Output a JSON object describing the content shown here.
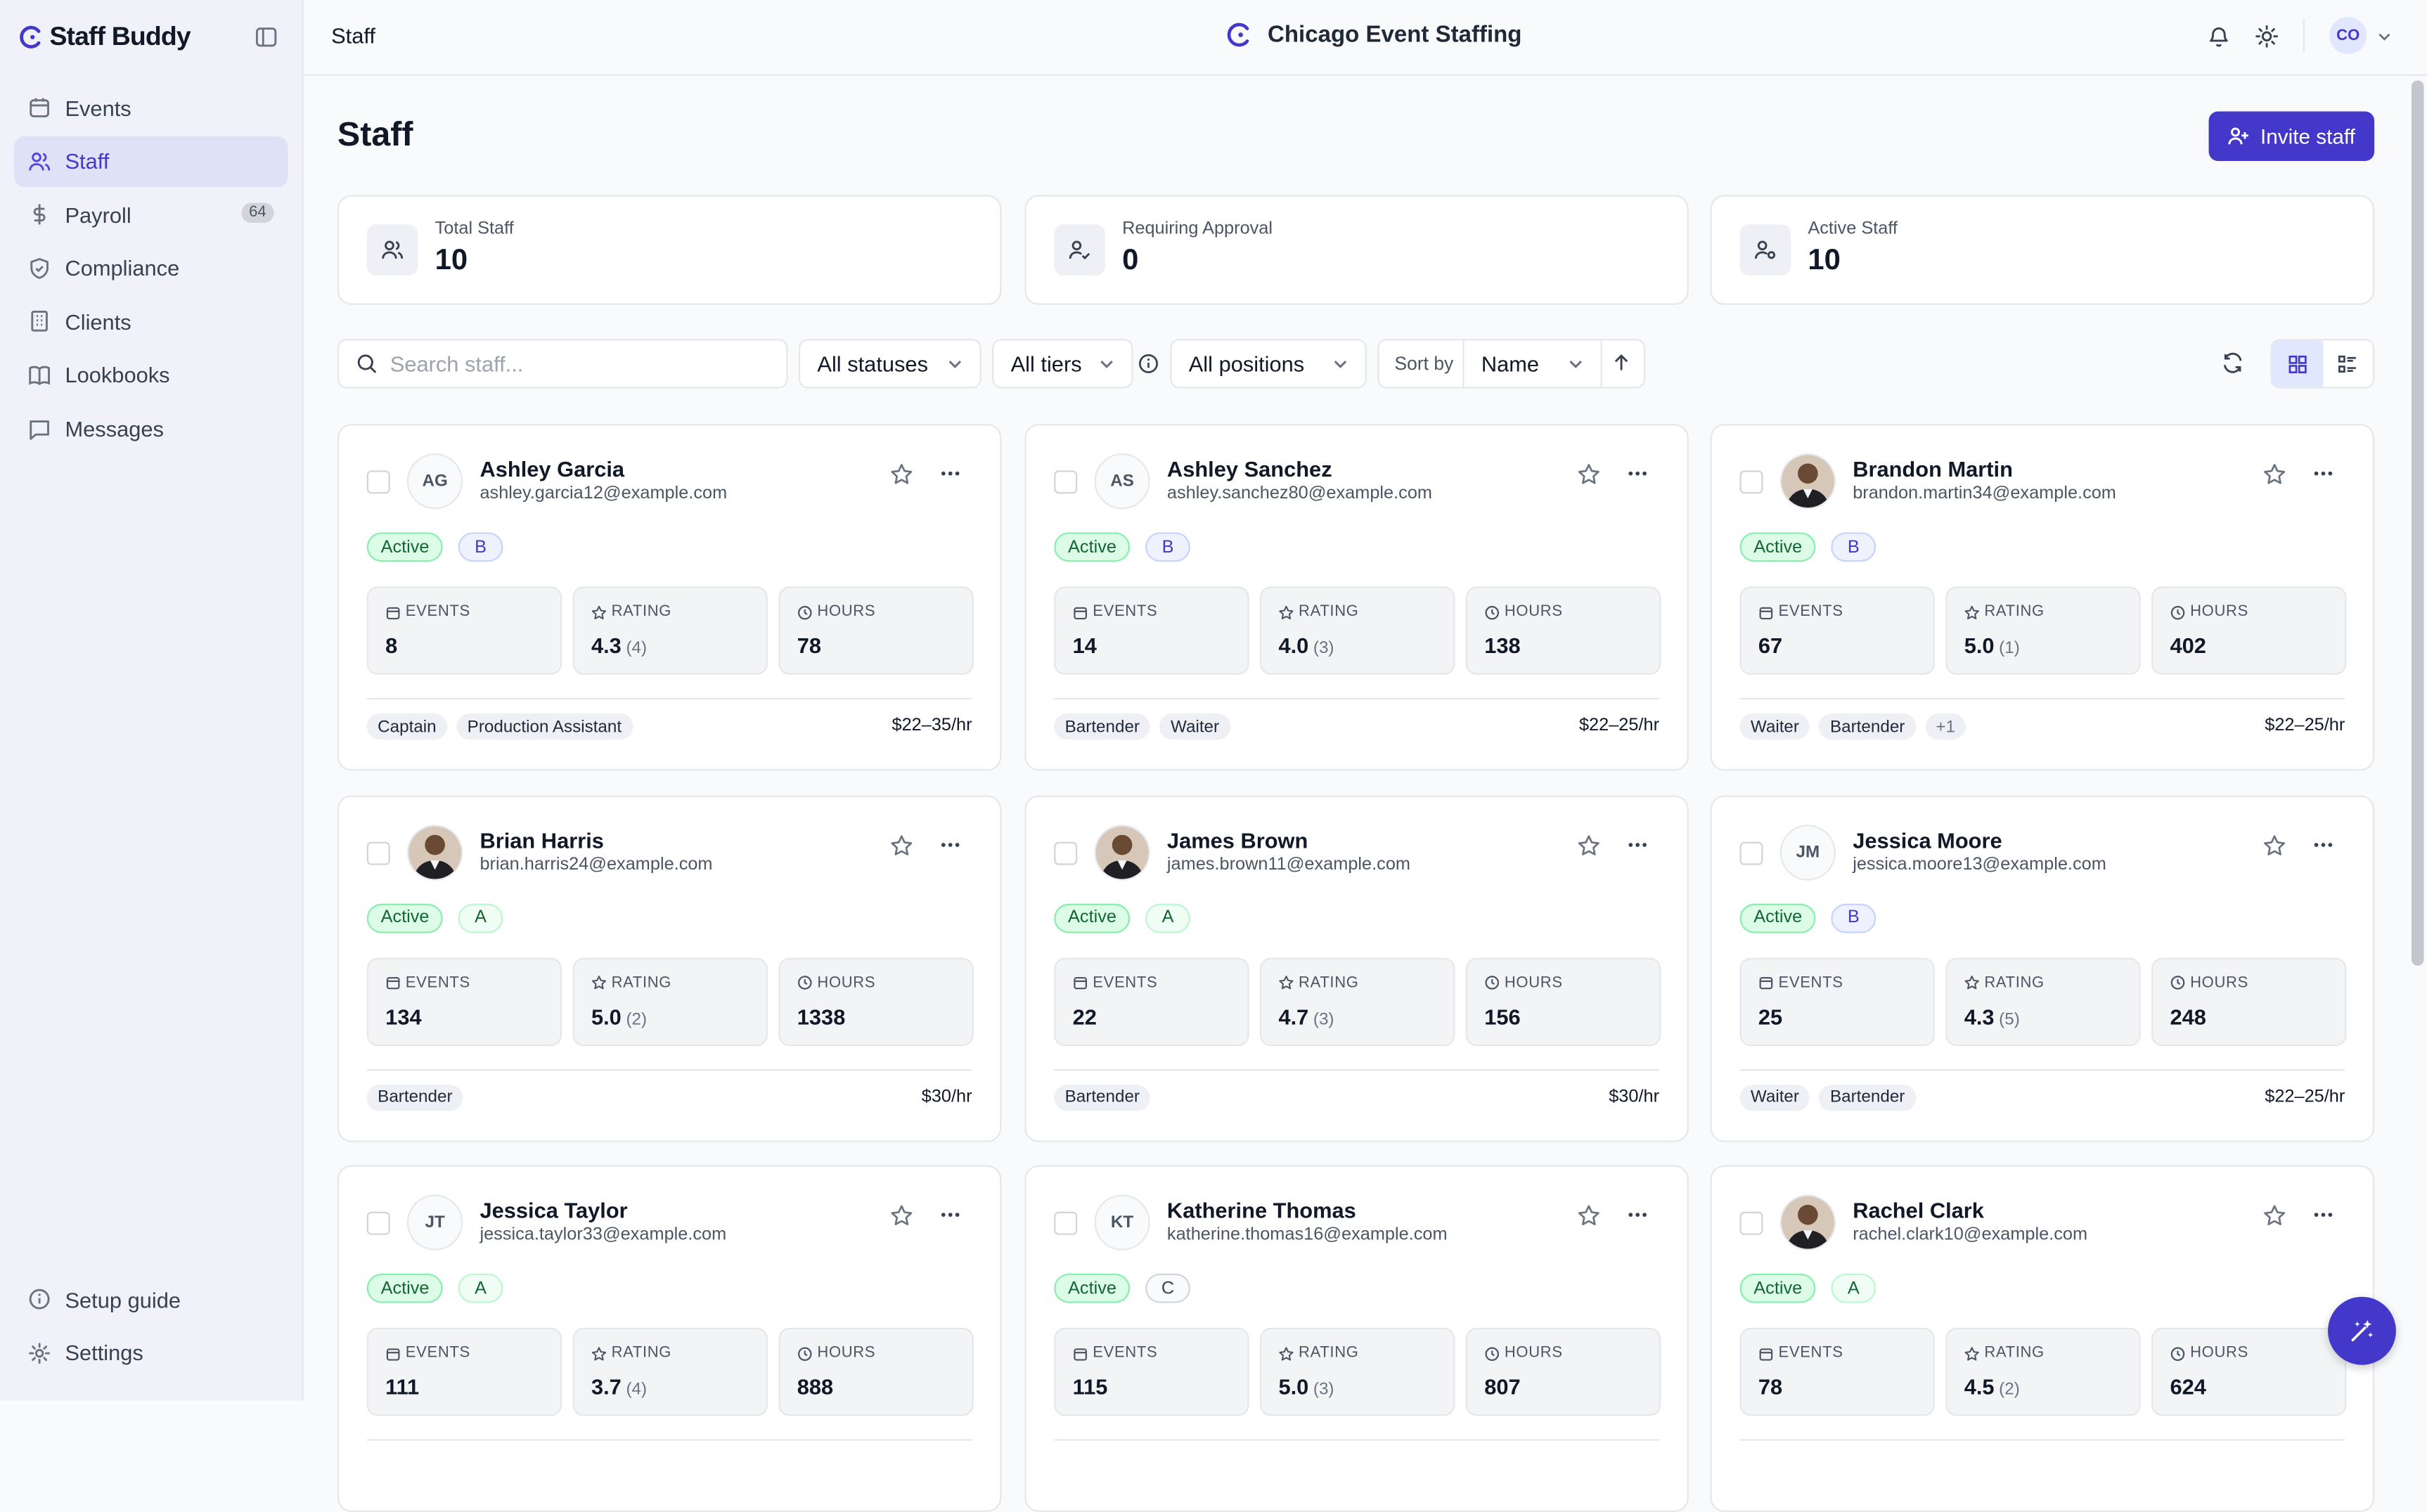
{
  "app": {
    "name": "Staff Buddy"
  },
  "sidebar": {
    "items": [
      {
        "label": "Events",
        "icon": "calendar-icon"
      },
      {
        "label": "Staff",
        "icon": "users-icon",
        "active": true
      },
      {
        "label": "Payroll",
        "icon": "dollar-icon",
        "badge": "64"
      },
      {
        "label": "Compliance",
        "icon": "shield-icon"
      },
      {
        "label": "Clients",
        "icon": "building-icon"
      },
      {
        "label": "Lookbooks",
        "icon": "book-icon"
      },
      {
        "label": "Messages",
        "icon": "message-icon"
      }
    ],
    "bottom": [
      {
        "label": "Setup guide",
        "icon": "info-icon"
      },
      {
        "label": "Settings",
        "icon": "gear-icon"
      }
    ]
  },
  "topbar": {
    "breadcrumb": "Staff",
    "org_name": "Chicago Event Staffing",
    "user_initials": "CO"
  },
  "page": {
    "title": "Staff",
    "invite_label": "Invite staff"
  },
  "stats": [
    {
      "label": "Total Staff",
      "value": "10",
      "icon": "users-icon"
    },
    {
      "label": "Requiring Approval",
      "value": "0",
      "icon": "user-check-icon"
    },
    {
      "label": "Active Staff",
      "value": "10",
      "icon": "user-active-icon"
    }
  ],
  "filters": {
    "search_placeholder": "Search staff...",
    "status": "All statuses",
    "tier": "All tiers",
    "position": "All positions",
    "sort_label": "Sort by",
    "sort_value": "Name"
  },
  "metric_labels": {
    "events": "EVENTS",
    "rating": "RATING",
    "hours": "HOURS"
  },
  "staff": [
    {
      "name": "Ashley Garcia",
      "email": "ashley.garcia12@example.com",
      "initials": "AG",
      "photo": false,
      "status": "Active",
      "tier": "B",
      "events": "8",
      "rating": "4.3",
      "rating_count": "(4)",
      "hours": "78",
      "tags": [
        "Captain",
        "Production Assistant"
      ],
      "rate": "$22–35/hr"
    },
    {
      "name": "Ashley Sanchez",
      "email": "ashley.sanchez80@example.com",
      "initials": "AS",
      "photo": false,
      "status": "Active",
      "tier": "B",
      "events": "14",
      "rating": "4.0",
      "rating_count": "(3)",
      "hours": "138",
      "tags": [
        "Bartender",
        "Waiter"
      ],
      "rate": "$22–25/hr"
    },
    {
      "name": "Brandon Martin",
      "email": "brandon.martin34@example.com",
      "initials": "",
      "photo": true,
      "status": "Active",
      "tier": "B",
      "events": "67",
      "rating": "5.0",
      "rating_count": "(1)",
      "hours": "402",
      "tags": [
        "Waiter",
        "Bartender",
        "+1"
      ],
      "rate": "$22–25/hr"
    },
    {
      "name": "Brian Harris",
      "email": "brian.harris24@example.com",
      "initials": "",
      "photo": true,
      "status": "Active",
      "tier": "A",
      "events": "134",
      "rating": "5.0",
      "rating_count": "(2)",
      "hours": "1338",
      "tags": [
        "Bartender"
      ],
      "rate": "$30/hr"
    },
    {
      "name": "James Brown",
      "email": "james.brown11@example.com",
      "initials": "",
      "photo": true,
      "status": "Active",
      "tier": "A",
      "events": "22",
      "rating": "4.7",
      "rating_count": "(3)",
      "hours": "156",
      "tags": [
        "Bartender"
      ],
      "rate": "$30/hr"
    },
    {
      "name": "Jessica Moore",
      "email": "jessica.moore13@example.com",
      "initials": "JM",
      "photo": false,
      "status": "Active",
      "tier": "B",
      "events": "25",
      "rating": "4.3",
      "rating_count": "(5)",
      "hours": "248",
      "tags": [
        "Waiter",
        "Bartender"
      ],
      "rate": "$22–25/hr"
    },
    {
      "name": "Jessica Taylor",
      "email": "jessica.taylor33@example.com",
      "initials": "JT",
      "photo": false,
      "status": "Active",
      "tier": "A",
      "events": "111",
      "rating": "3.7",
      "rating_count": "(4)",
      "hours": "888",
      "tags": [],
      "rate": ""
    },
    {
      "name": "Katherine Thomas",
      "email": "katherine.thomas16@example.com",
      "initials": "KT",
      "photo": false,
      "status": "Active",
      "tier": "C",
      "events": "115",
      "rating": "5.0",
      "rating_count": "(3)",
      "hours": "807",
      "tags": [],
      "rate": ""
    },
    {
      "name": "Rachel Clark",
      "email": "rachel.clark10@example.com",
      "initials": "",
      "photo": true,
      "status": "Active",
      "tier": "A",
      "events": "78",
      "rating": "4.5",
      "rating_count": "(2)",
      "hours": "624",
      "tags": [],
      "rate": ""
    }
  ],
  "colors": {
    "accent": "#4338ca",
    "active_bg": "#dcfce7",
    "sidebar_bg": "#f1f2f9"
  }
}
